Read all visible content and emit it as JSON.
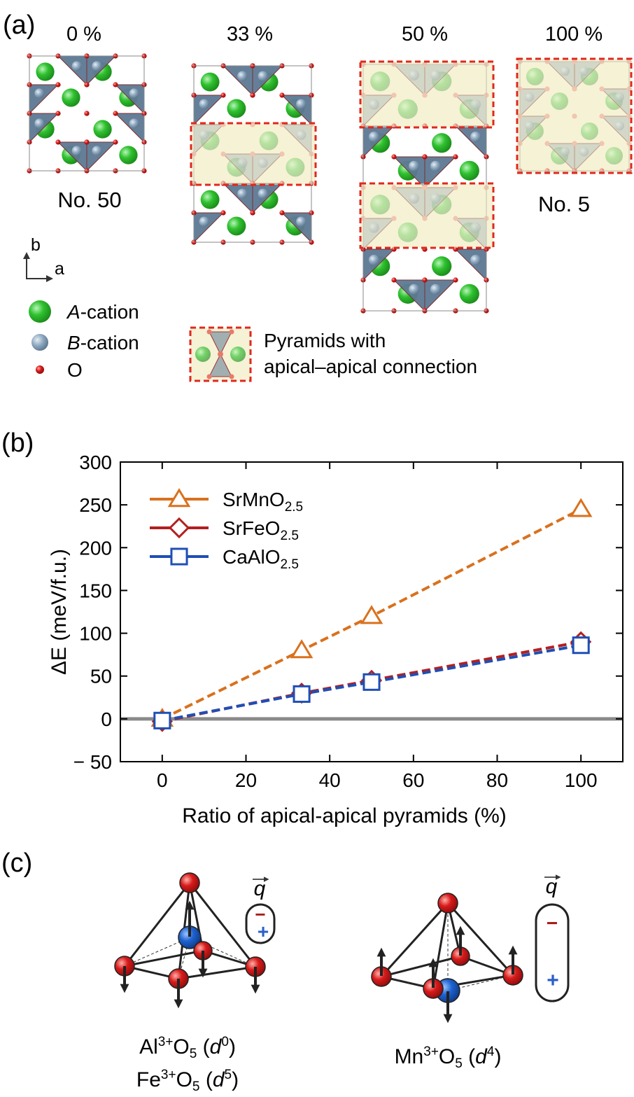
{
  "panel_a": {
    "label": "(a)",
    "ratios": [
      "0 %",
      "33 %",
      "50 %",
      "100 %"
    ],
    "structure_ids": [
      "No. 50",
      "No. 5"
    ],
    "axes": {
      "b": "b",
      "a": "a"
    },
    "legend": {
      "a_cation_italic": "A",
      "a_cation_rest": "-cation",
      "b_cation_italic": "B",
      "b_cation_rest": "-cation",
      "oxygen": "O",
      "pyramids_line1": "Pyramids with",
      "pyramids_line2": "apical–apical connection"
    },
    "colors": {
      "a_cation": "#2fc12f",
      "b_cation": "#7f9bb4",
      "oxygen": "#d81b1b",
      "polyhedron": "#5d7893",
      "highlight_fill": "#f5f2d6",
      "highlight_border": "#e0281e"
    }
  },
  "panel_b": {
    "label": "(b)",
    "chart_data": {
      "type": "line",
      "title": "",
      "xlabel": "Ratio of apical-apical pyramids (%)",
      "ylabel": "ΔE (meV/f.u.)",
      "xlim": [
        -10,
        110
      ],
      "ylim": [
        -50,
        300
      ],
      "xticks": [
        0,
        20,
        40,
        60,
        80,
        100
      ],
      "yticks": [
        -50,
        0,
        50,
        100,
        150,
        200,
        250,
        300
      ],
      "ytick_labels": [
        "− 50",
        "0",
        "50",
        "100",
        "150",
        "200",
        "250",
        "300"
      ],
      "reference_line_y": 0,
      "grid": false,
      "legend_position": "top-left",
      "series": [
        {
          "name": "SrMnO",
          "subscript": "2.5",
          "marker": "triangle",
          "color": "#d9711e",
          "x": [
            0,
            33.3,
            50,
            100
          ],
          "values": [
            0,
            80,
            120,
            245
          ]
        },
        {
          "name": "SrFeO",
          "subscript": "2.5",
          "marker": "diamond",
          "color": "#b22020",
          "x": [
            0,
            33.3,
            50,
            100
          ],
          "values": [
            -3,
            30,
            45,
            90
          ]
        },
        {
          "name": "CaAlO",
          "subscript": "2.5",
          "marker": "square",
          "color": "#1f4fb5",
          "x": [
            0,
            33.3,
            50,
            100
          ],
          "values": [
            -2,
            29,
            43,
            86
          ]
        }
      ]
    }
  },
  "panel_c": {
    "label": "(c)",
    "q_symbol": "q",
    "minus": "−",
    "plus": "+",
    "left": {
      "line1_ion": "Al",
      "line1_charge": "3+",
      "line1_o": "O",
      "line1_sub": "5",
      "line1_d": "d",
      "line1_dsup": "0",
      "line2_ion": "Fe",
      "line2_charge": "3+",
      "line2_o": "O",
      "line2_sub": "5",
      "line2_d": "d",
      "line2_dsup": "5"
    },
    "right": {
      "ion": "Mn",
      "charge": "3+",
      "o": "O",
      "sub": "5",
      "d": "d",
      "dsup": "4"
    }
  }
}
